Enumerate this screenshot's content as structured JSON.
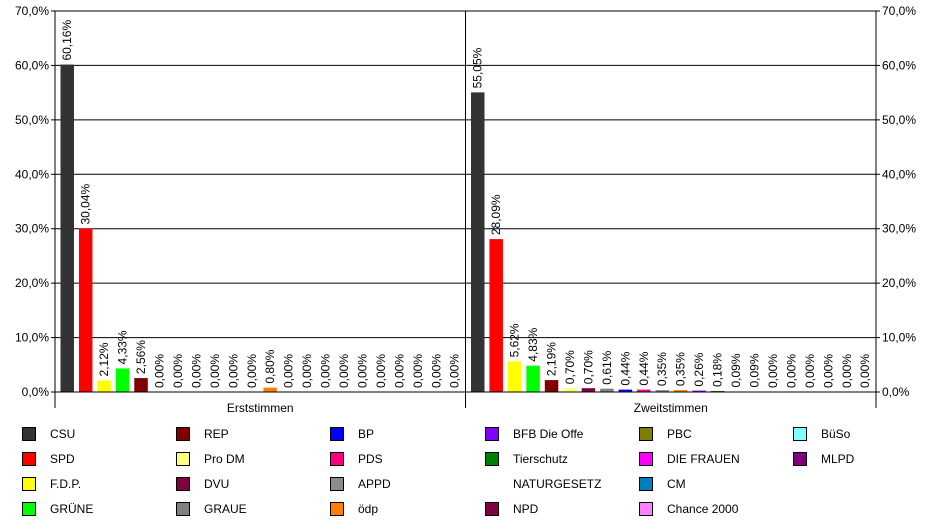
{
  "chart_data": {
    "type": "bar",
    "groups": [
      "Erststimmen",
      "Zweitstimmen"
    ],
    "ylim": [
      0,
      70
    ],
    "yticks": [
      "0,0%",
      "10,0%",
      "20,0%",
      "30,0%",
      "40,0%",
      "50,0%",
      "60,0%",
      "70,0%"
    ],
    "grid": true,
    "legend_position": "bottom",
    "series": [
      {
        "name": "CSU",
        "color": "#333333",
        "values": [
          60.16,
          55.05
        ],
        "labels": [
          "60,16%",
          "55,05%"
        ]
      },
      {
        "name": "SPD",
        "color": "#ff0000",
        "values": [
          30.04,
          28.09
        ],
        "labels": [
          "30,04%",
          "28,09%"
        ]
      },
      {
        "name": "F.D.P.",
        "color": "#ffff00",
        "values": [
          2.12,
          5.62
        ],
        "labels": [
          "2,12%",
          "5,62%"
        ]
      },
      {
        "name": "GRÜNE",
        "color": "#00ff00",
        "values": [
          4.33,
          4.83
        ],
        "labels": [
          "4,33%",
          "4,83%"
        ]
      },
      {
        "name": "REP",
        "color": "#800000",
        "values": [
          2.56,
          2.19
        ],
        "labels": [
          "2,56%",
          "2,19%"
        ]
      },
      {
        "name": "Pro DM",
        "color": "#ffff80",
        "values": [
          0.0,
          0.7
        ],
        "labels": [
          "0,00%",
          "0,70%"
        ]
      },
      {
        "name": "DVU",
        "color": "#800040",
        "values": [
          0.0,
          0.7
        ],
        "labels": [
          "0,00%",
          "0,70%"
        ]
      },
      {
        "name": "GRAUE",
        "color": "#808080",
        "values": [
          0.0,
          0.61
        ],
        "labels": [
          "0,00%",
          "0,61%"
        ]
      },
      {
        "name": "BP",
        "color": "#0000ff",
        "values": [
          0.0,
          0.44
        ],
        "labels": [
          "0,00%",
          "0,44%"
        ]
      },
      {
        "name": "PDS",
        "color": "#ff0080",
        "values": [
          0.0,
          0.44
        ],
        "labels": [
          "0,00%",
          "0,44%"
        ]
      },
      {
        "name": "APPD",
        "color": "#8c8c8c",
        "values": [
          0.0,
          0.35
        ],
        "labels": [
          "0,00%",
          "0,35%"
        ]
      },
      {
        "name": "ödp",
        "color": "#ff8000",
        "values": [
          0.8,
          0.35
        ],
        "labels": [
          "0,80%",
          "0,35%"
        ]
      },
      {
        "name": "BFB Die Offe",
        "color": "#8000ff",
        "values": [
          0.0,
          0.26
        ],
        "labels": [
          "0,00%",
          "0,26%"
        ]
      },
      {
        "name": "Tierschutz",
        "color": "#008000",
        "values": [
          0.0,
          0.18
        ],
        "labels": [
          "0,00%",
          "0,18%"
        ]
      },
      {
        "name": "NATURGESETZ",
        "color": "#ffffff",
        "values": [
          0.0,
          0.09
        ],
        "labels": [
          "0,00%",
          "0,09%"
        ]
      },
      {
        "name": "NPD",
        "color": "#800040",
        "values": [
          0.0,
          0.09
        ],
        "labels": [
          "0,00%",
          "0,09%"
        ]
      },
      {
        "name": "PBC",
        "color": "#808000",
        "values": [
          0.0,
          0.0
        ],
        "labels": [
          "0,00%",
          "0,00%"
        ]
      },
      {
        "name": "DIE FRAUEN",
        "color": "#ff00ff",
        "values": [
          0.0,
          0.0
        ],
        "labels": [
          "0,00%",
          "0,00%"
        ]
      },
      {
        "name": "CM",
        "color": "#0080c0",
        "values": [
          0.0,
          0.0
        ],
        "labels": [
          "0,00%",
          "0,00%"
        ]
      },
      {
        "name": "Chance 2000",
        "color": "#ff80ff",
        "values": [
          0.0,
          0.0
        ],
        "labels": [
          "0,00%",
          "0,00%"
        ]
      },
      {
        "name": "BüSo",
        "color": "#80ffff",
        "values": [
          0.0,
          0.0
        ],
        "labels": [
          "0,00%",
          "0,00%"
        ]
      },
      {
        "name": "MLPD",
        "color": "#800080",
        "values": [
          0.0,
          0.0
        ],
        "labels": [
          "0,00%",
          "0,00%"
        ]
      }
    ]
  }
}
